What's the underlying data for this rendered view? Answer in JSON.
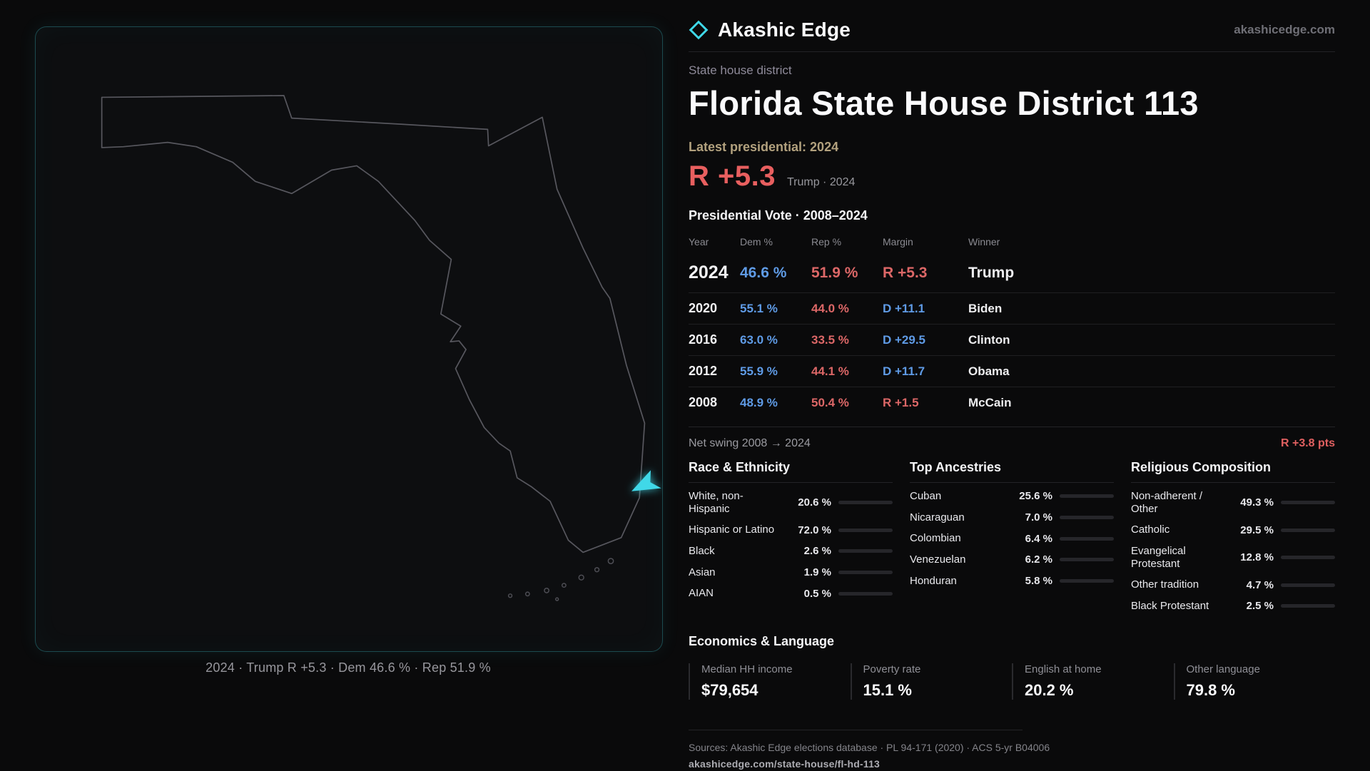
{
  "brand": {
    "name": "Akashic Edge",
    "site": "akashicedge.com",
    "accent": "#3fd8e8"
  },
  "map": {
    "state": "Florida",
    "caption": "2024 · Trump R +5.3 · Dem 46.6 % · Rep 51.9 %",
    "outline_color": "#57575e",
    "district_color": "#3fd8e8"
  },
  "header": {
    "eyebrow": "State house district",
    "title": "Florida State House District 113",
    "latest": "Latest presidential: 2024",
    "margin": "R +5.3",
    "margin_note": "Trump · 2024"
  },
  "vote_table": {
    "title": "Presidential Vote · 2008–2024",
    "columns": [
      "Year",
      "Dem %",
      "Rep %",
      "Margin",
      "Winner"
    ],
    "rows": [
      {
        "year": "2024",
        "dem": "46.6 %",
        "rep": "51.9 %",
        "margin": "R +5.3",
        "winner": "Trump"
      },
      {
        "year": "2020",
        "dem": "55.1 %",
        "rep": "44.0 %",
        "margin": "D +11.1",
        "winner": "Biden"
      },
      {
        "year": "2016",
        "dem": "63.0 %",
        "rep": "33.5 %",
        "margin": "D +29.5",
        "winner": "Clinton"
      },
      {
        "year": "2012",
        "dem": "55.9 %",
        "rep": "44.1 %",
        "margin": "D +11.7",
        "winner": "Obama"
      },
      {
        "year": "2008",
        "dem": "48.9 %",
        "rep": "50.4 %",
        "margin": "R +1.5",
        "winner": "McCain"
      }
    ]
  },
  "net_swing": {
    "label": "Net swing 2008 → 2024",
    "value": "R +3.8 pts"
  },
  "demographics": {
    "groups": [
      {
        "title": "Race & Ethnicity",
        "items": [
          {
            "label": "White, non-Hispanic",
            "value": "20.6 %",
            "pct": 20.6,
            "color": "#9aa4b5"
          },
          {
            "label": "Hispanic or Latino",
            "value": "72.0 %",
            "pct": 72.0,
            "color": "#d9a03c"
          },
          {
            "label": "Black",
            "value": "2.6 %",
            "pct": 2.6,
            "color": "#6f74d6"
          },
          {
            "label": "Asian",
            "value": "1.9 %",
            "pct": 1.9,
            "color": "#58b9a0"
          },
          {
            "label": "AIAN",
            "value": "0.5 %",
            "pct": 0.5,
            "color": "#8a8a90"
          }
        ]
      },
      {
        "title": "Top Ancestries",
        "items": [
          {
            "label": "Cuban",
            "value": "25.6 %",
            "pct": 25.6,
            "color": "#d9a03c"
          },
          {
            "label": "Nicaraguan",
            "value": "7.0 %",
            "pct": 7.0,
            "color": "#d9a03c"
          },
          {
            "label": "Colombian",
            "value": "6.4 %",
            "pct": 6.4,
            "color": "#d9a03c"
          },
          {
            "label": "Venezuelan",
            "value": "6.2 %",
            "pct": 6.2,
            "color": "#d9a03c"
          },
          {
            "label": "Honduran",
            "value": "5.8 %",
            "pct": 5.8,
            "color": "#d9a03c"
          }
        ]
      },
      {
        "title": "Religious Composition",
        "items": [
          {
            "label": "Non-adherent / Other",
            "value": "49.3 %",
            "pct": 49.3,
            "color": "#9b98ad"
          },
          {
            "label": "Catholic",
            "value": "29.5 %",
            "pct": 29.5,
            "color": "#d9a03c"
          },
          {
            "label": "Evangelical Protestant",
            "value": "12.8 %",
            "pct": 12.8,
            "color": "#e07a7a"
          },
          {
            "label": "Other tradition",
            "value": "4.7 %",
            "pct": 4.7,
            "color": "#cfcfd4"
          },
          {
            "label": "Black Protestant",
            "value": "2.5 %",
            "pct": 2.5,
            "color": "#6f74d6"
          }
        ]
      }
    ]
  },
  "economics": {
    "title": "Economics & Language",
    "stats": [
      {
        "label": "Median HH income",
        "value": "$79,654"
      },
      {
        "label": "Poverty rate",
        "value": "15.1 %"
      },
      {
        "label": "English at home",
        "value": "20.2 %"
      },
      {
        "label": "Other language",
        "value": "79.8 %"
      }
    ]
  },
  "footer": {
    "sources": "Sources: Akashic Edge elections database · PL 94-171 (2020) · ACS 5-yr B04006",
    "permalink": "akashicedge.com/state-house/fl-hd-113"
  }
}
